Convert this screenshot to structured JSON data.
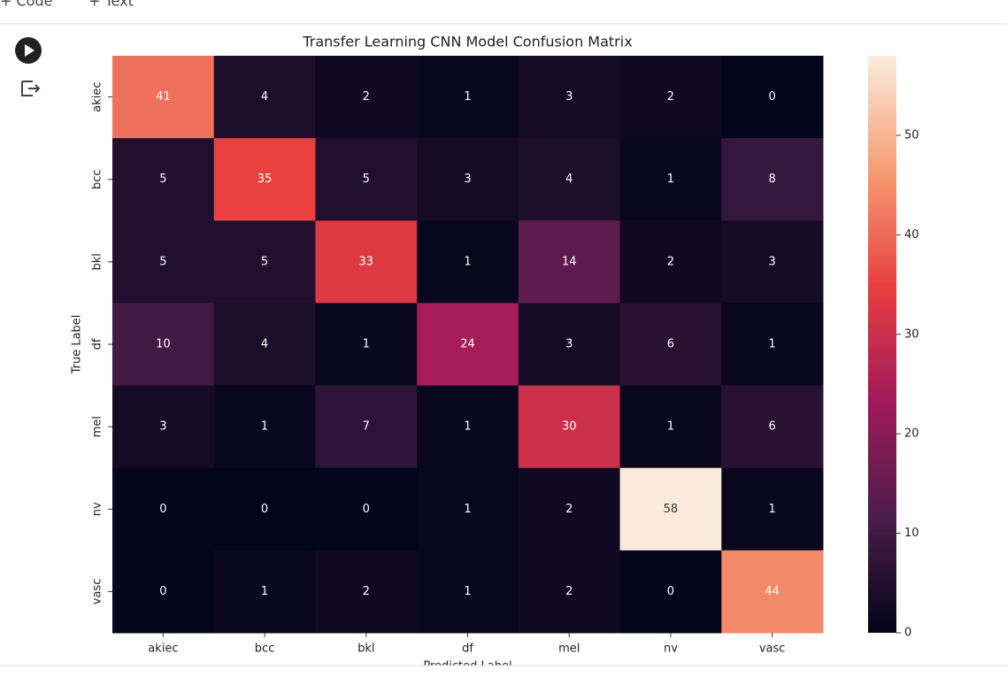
{
  "toolbar": [
    "+ Code",
    "+ Text"
  ],
  "chart_data": {
    "type": "heatmap",
    "title": "Transfer Learning CNN Model Confusion Matrix",
    "xlabel": "Predicted Label",
    "ylabel": "True Label",
    "x_categories": [
      "akiec",
      "bcc",
      "bkl",
      "df",
      "mel",
      "nv",
      "vasc"
    ],
    "y_categories": [
      "akiec",
      "bcc",
      "bkl",
      "df",
      "mel",
      "nv",
      "vasc"
    ],
    "values": [
      [
        41,
        4,
        2,
        1,
        3,
        2,
        0
      ],
      [
        5,
        35,
        5,
        3,
        4,
        1,
        8
      ],
      [
        5,
        5,
        33,
        1,
        14,
        2,
        3
      ],
      [
        10,
        4,
        1,
        24,
        3,
        6,
        1
      ],
      [
        3,
        1,
        7,
        1,
        30,
        1,
        6
      ],
      [
        0,
        0,
        0,
        1,
        2,
        58,
        1
      ],
      [
        0,
        1,
        2,
        1,
        2,
        0,
        44
      ]
    ],
    "clim": [
      0,
      58
    ],
    "cticks": [
      0,
      10,
      20,
      30,
      40,
      50
    ],
    "colormap": [
      "#03051a",
      "#4c1d4b",
      "#a11a5b",
      "#e83f3f",
      "#f69c73",
      "#faebdd"
    ]
  }
}
